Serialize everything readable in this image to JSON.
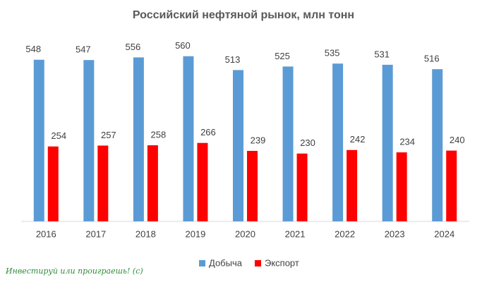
{
  "chart_data": {
    "type": "bar",
    "title": "Российский нефтяной рынок, млн тонн",
    "categories": [
      "2016",
      "2017",
      "2018",
      "2019",
      "2020",
      "2021",
      "2022",
      "2023",
      "2024"
    ],
    "series": [
      {
        "name": "Добыча",
        "color": "#5b9bd5",
        "values": [
          548,
          547,
          556,
          560,
          513,
          525,
          535,
          531,
          516
        ]
      },
      {
        "name": "Экспорт",
        "color": "#ff0000",
        "values": [
          254,
          257,
          258,
          266,
          239,
          230,
          242,
          234,
          240
        ]
      }
    ],
    "ylim": [
      0,
      600
    ],
    "legend": "bottom",
    "watermark": "Инвестируй или проиграешь! (с)"
  }
}
